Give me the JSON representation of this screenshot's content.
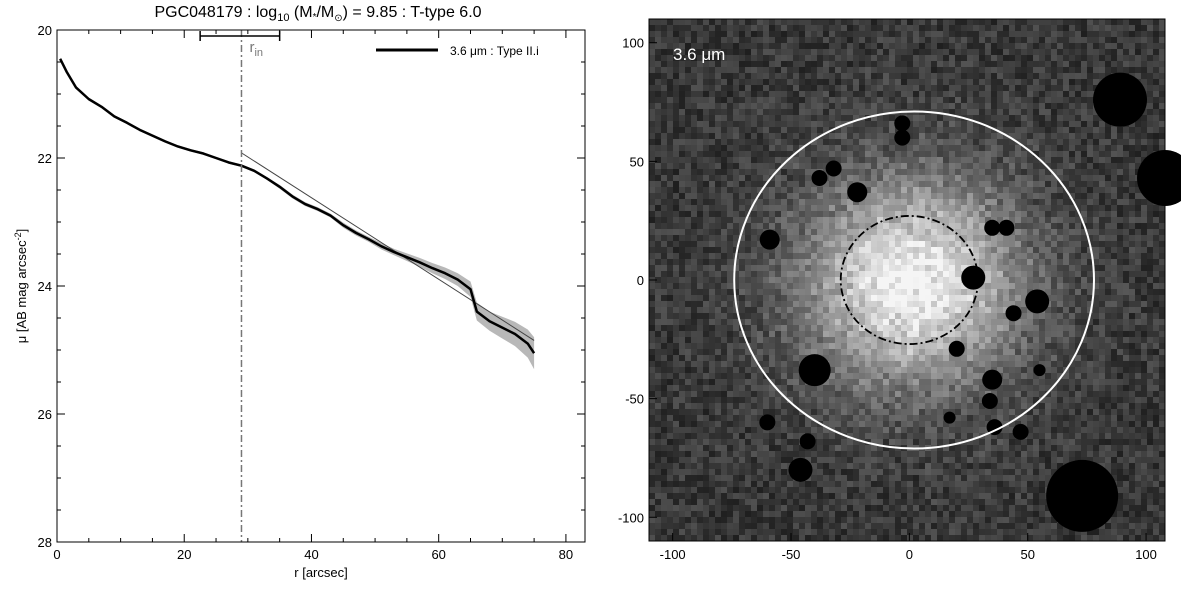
{
  "chart_data": [
    {
      "type": "line",
      "title_main": "PGC048179 : log",
      "title_sub": "10",
      "title_mass": " (M",
      "title_star": "*",
      "title_slash": "/M",
      "title_sun": "⊙",
      "title_rest": ") = 9.85 : T-type 6.0",
      "xlabel": "r [arcsec]",
      "ylabel_main": "μ [AB mag arcsec",
      "ylabel_sup": "-2",
      "ylabel_end": "]",
      "xlim": [
        0,
        83
      ],
      "ylim": [
        28,
        20
      ],
      "xticks": [
        0,
        20,
        40,
        60,
        80
      ],
      "yticks": [
        20,
        22,
        24,
        26,
        28
      ],
      "legend": {
        "label": "3.6 μm : Type II.i",
        "position": "top-right"
      },
      "r_in": {
        "label": "r",
        "label_sub": "in",
        "x": 29.0,
        "err_low": 22.5,
        "err_high": 35.0
      },
      "series": [
        {
          "name": "3.6 μm : Type II.i",
          "x": [
            0.5,
            1.5,
            3,
            5,
            7,
            9,
            11,
            13,
            15,
            17,
            19,
            21,
            23,
            25,
            27,
            29,
            31,
            33,
            35,
            37,
            39,
            41,
            43,
            45,
            47,
            49,
            51,
            53,
            55,
            57,
            59,
            61,
            63,
            65,
            66,
            68,
            70,
            72,
            74,
            75
          ],
          "y": [
            20.45,
            20.65,
            20.9,
            21.08,
            21.2,
            21.35,
            21.45,
            21.56,
            21.65,
            21.74,
            21.82,
            21.88,
            21.93,
            22.0,
            22.07,
            22.12,
            22.2,
            22.32,
            22.45,
            22.6,
            22.72,
            22.8,
            22.9,
            23.05,
            23.17,
            23.27,
            23.38,
            23.47,
            23.55,
            23.63,
            23.72,
            23.8,
            23.9,
            24.05,
            24.4,
            24.55,
            24.65,
            24.75,
            24.9,
            25.05
          ],
          "err": [
            0.02,
            0.02,
            0.02,
            0.02,
            0.02,
            0.02,
            0.02,
            0.02,
            0.02,
            0.02,
            0.02,
            0.02,
            0.02,
            0.02,
            0.02,
            0.02,
            0.02,
            0.02,
            0.03,
            0.03,
            0.03,
            0.03,
            0.03,
            0.04,
            0.04,
            0.04,
            0.05,
            0.05,
            0.06,
            0.07,
            0.08,
            0.09,
            0.1,
            0.12,
            0.14,
            0.15,
            0.17,
            0.19,
            0.22,
            0.25
          ]
        }
      ],
      "fit_line": {
        "x": [
          29,
          75
        ],
        "y": [
          21.92,
          24.85
        ]
      }
    },
    {
      "type": "heatmap",
      "band_label": "3.6 μm",
      "xlim": [
        -110,
        108
      ],
      "ylim": [
        -110,
        110
      ],
      "xticks": [
        -100,
        -50,
        0,
        50,
        100
      ],
      "yticks": [
        100,
        50,
        0,
        -50,
        -100
      ],
      "outer_ellipse": {
        "center": [
          2,
          0
        ],
        "rx": 76,
        "ry": 71
      },
      "inner_ellipse": {
        "center": [
          0,
          0
        ],
        "rx": 29,
        "ry": 27
      },
      "colors": {
        "background": "#1c1c1c",
        "ellipse": "#ffffff",
        "mask": "#000000"
      }
    }
  ]
}
